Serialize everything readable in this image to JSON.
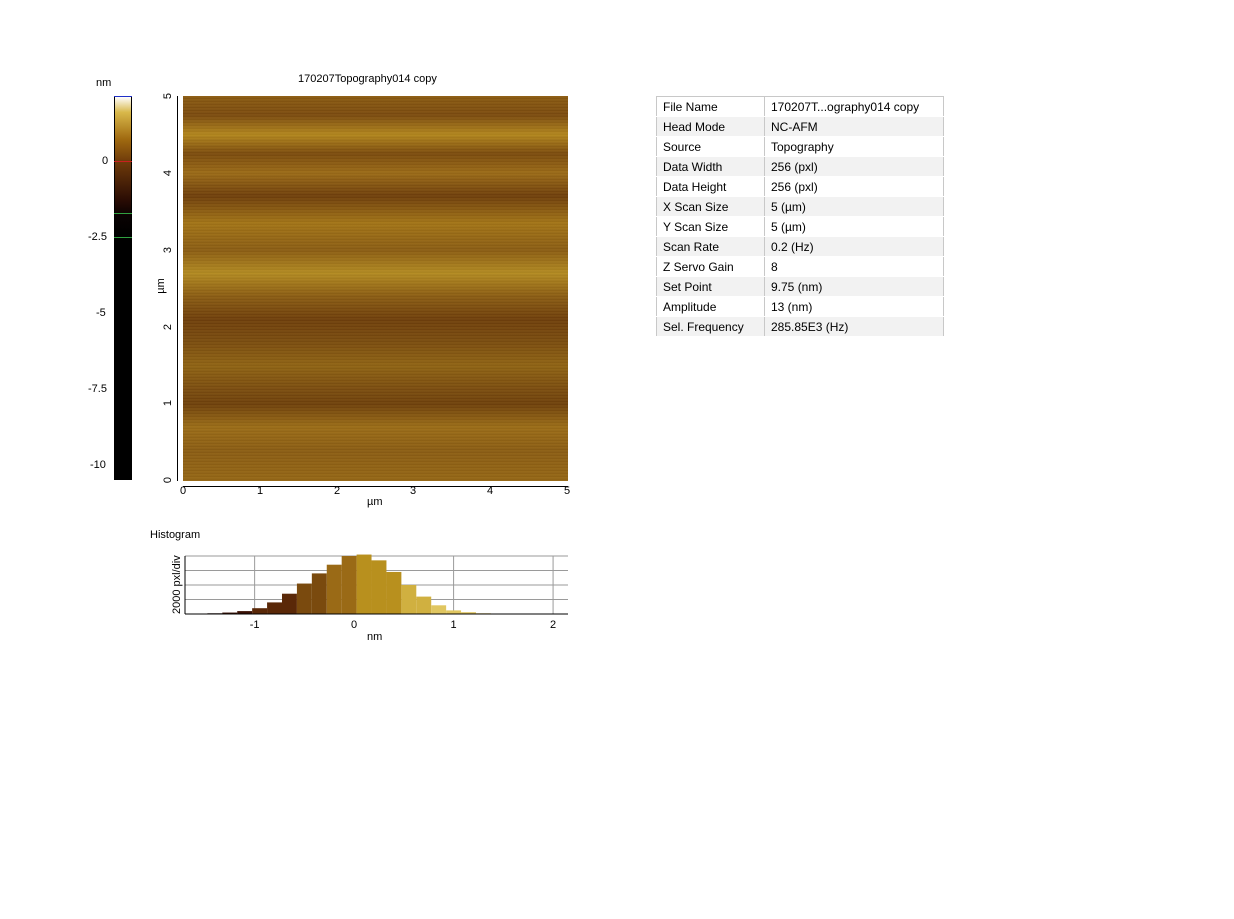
{
  "image_title": "170207Topography014 copy",
  "colorbar": {
    "unit": "nm",
    "ticks": [
      "0",
      "-2.5",
      "-5",
      "-7.5",
      "-10"
    ]
  },
  "image_axes": {
    "xlabel": "µm",
    "ylabel": "µm",
    "x_ticks": [
      "0",
      "1",
      "2",
      "3",
      "4",
      "5"
    ],
    "y_ticks": [
      "0",
      "1",
      "2",
      "3",
      "4",
      "5"
    ]
  },
  "info": [
    {
      "key": "File Name",
      "value": "170207T...ography014 copy"
    },
    {
      "key": "Head Mode",
      "value": "NC-AFM"
    },
    {
      "key": "Source",
      "value": "Topography"
    },
    {
      "key": "Data Width",
      "value": "256 (pxl)"
    },
    {
      "key": "Data Height",
      "value": "256 (pxl)"
    },
    {
      "key": "X Scan Size",
      "value": "5 (µm)"
    },
    {
      "key": "Y Scan Size",
      "value": "5 (µm)"
    },
    {
      "key": "Scan Rate",
      "value": "0.2 (Hz)"
    },
    {
      "key": "Z Servo Gain",
      "value": "8"
    },
    {
      "key": "Set Point",
      "value": "9.75 (nm)"
    },
    {
      "key": "Amplitude",
      "value": "13 (nm)"
    },
    {
      "key": "Sel. Frequency",
      "value": "285.85E3 (Hz)"
    }
  ],
  "histogram": {
    "title": "Histogram",
    "ylabel": "2000 pxl/div",
    "xlabel": "nm",
    "x_ticks": [
      "-1",
      "0",
      "1",
      "2"
    ]
  },
  "chart_data": {
    "type": "bar",
    "title": "Histogram",
    "xlabel": "nm",
    "ylabel": "2000 pxl/div",
    "xlim": [
      -1.7,
      2.15
    ],
    "ylim": [
      0,
      8000
    ],
    "bin_centers": [
      -1.4,
      -1.25,
      -1.1,
      -0.95,
      -0.8,
      -0.65,
      -0.5,
      -0.35,
      -0.2,
      -0.05,
      0.1,
      0.25,
      0.4,
      0.55,
      0.7,
      0.85,
      1.0,
      1.15,
      1.3,
      1.45
    ],
    "values": [
      100,
      200,
      400,
      800,
      1600,
      2800,
      4200,
      5600,
      6800,
      8000,
      8200,
      7400,
      5800,
      4000,
      2400,
      1200,
      500,
      250,
      100,
      50
    ]
  }
}
